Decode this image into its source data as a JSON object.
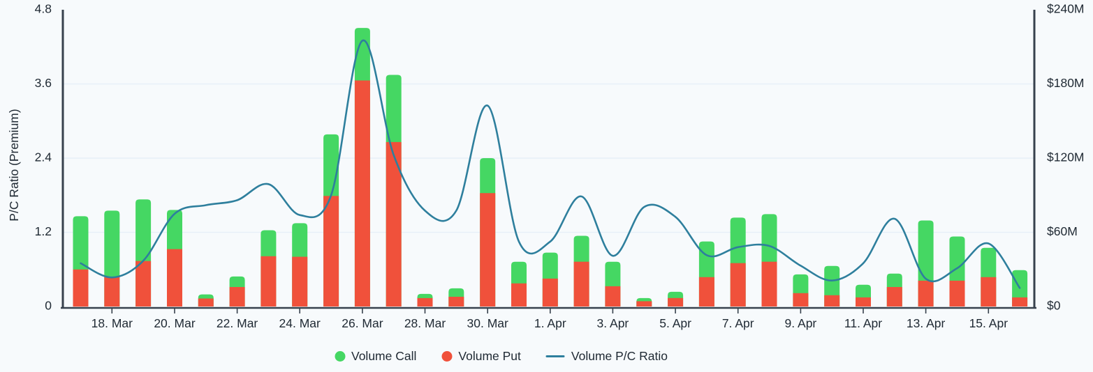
{
  "colors": {
    "background": "#f7fafc",
    "axis_line": "#37414d",
    "grid_line": "#e7eff8",
    "text": "#1f2933",
    "call_green": "#45d763",
    "put_red": "#f0513b",
    "ratio_line_teal": "#2e7f9d"
  },
  "chart_data": {
    "type": "stacked-bar-with-spline-combo",
    "x": [
      "17 Mar",
      "18 Mar",
      "19 Mar",
      "20 Mar",
      "21 Mar",
      "22 Mar",
      "23 Mar",
      "24 Mar",
      "25 Mar",
      "26 Mar",
      "27 Mar",
      "28 Mar",
      "29 Mar",
      "30 Mar",
      "31 Mar",
      "1 Apr",
      "2 Apr",
      "3 Apr",
      "4 Apr",
      "5 Apr",
      "6 Apr",
      "7 Apr",
      "8 Apr",
      "9 Apr",
      "10 Apr",
      "11 Apr",
      "12 Apr",
      "13 Apr",
      "14 Apr",
      "15 Apr",
      "16 Apr"
    ],
    "x_tick_labels": [
      "18. Mar",
      "20. Mar",
      "22. Mar",
      "24. Mar",
      "26. Mar",
      "28. Mar",
      "30. Mar",
      "1. Apr",
      "3. Apr",
      "5. Apr",
      "7. Apr",
      "9. Apr",
      "11. Apr",
      "13. Apr",
      "15. Apr"
    ],
    "x_tick_indices": [
      1,
      3,
      5,
      7,
      9,
      11,
      13,
      15,
      17,
      19,
      21,
      23,
      25,
      27,
      29
    ],
    "series": [
      {
        "name": "Volume Call",
        "type": "bar-stack-top",
        "color": "#45d763",
        "axis": "right",
        "values_musd": [
          43.0,
          53.7,
          49.8,
          31.7,
          3.3,
          8.5,
          21.0,
          27.2,
          49.8,
          42.5,
          54.3,
          3.4,
          6.8,
          28.3,
          17.5,
          21.0,
          21.0,
          19.8,
          2.5,
          5.0,
          28.8,
          36.8,
          38.5,
          15.2,
          23.7,
          10.2,
          10.8,
          48.7,
          35.7,
          23.7,
          22.0
        ]
      },
      {
        "name": "Volume Put",
        "type": "bar-stack-bottom",
        "color": "#f0513b",
        "axis": "right",
        "values_musd": [
          30.0,
          23.8,
          36.8,
          46.4,
          6.5,
          15.8,
          40.7,
          40.2,
          89.4,
          182.8,
          133.0,
          6.8,
          7.9,
          91.7,
          18.7,
          22.6,
          36.2,
          16.4,
          4.3,
          6.9,
          23.8,
          35.1,
          36.2,
          10.8,
          9.1,
          7.4,
          15.8,
          20.9,
          20.9,
          23.8,
          7.4
        ]
      },
      {
        "name": "Volume P/C Ratio",
        "type": "spline",
        "color": "#2e7f9d",
        "axis": "left",
        "values": [
          0.7,
          0.47,
          0.74,
          1.5,
          1.64,
          1.72,
          1.98,
          1.48,
          1.8,
          4.3,
          2.45,
          1.55,
          1.55,
          3.25,
          1.05,
          1.05,
          1.78,
          0.82,
          1.61,
          1.45,
          0.83,
          0.96,
          0.98,
          0.66,
          0.42,
          0.7,
          1.42,
          0.45,
          0.62,
          1.02,
          0.3
        ]
      }
    ],
    "left_axis": {
      "title": "P/C Ratio (Premium)",
      "tick_labels": [
        "0",
        "1.2",
        "2.4",
        "3.6",
        "4.8"
      ],
      "ticks": [
        0,
        1.2,
        2.4,
        3.6,
        4.8
      ],
      "range": [
        0,
        4.8
      ]
    },
    "right_axis": {
      "tick_labels": [
        "$0",
        "$60M",
        "$120M",
        "$180M",
        "$240M"
      ],
      "ticks_musd": [
        0,
        60,
        120,
        180,
        240
      ],
      "range_musd": [
        0,
        240
      ]
    },
    "grid": "horizontal-only",
    "legend_position": "bottom-center"
  }
}
